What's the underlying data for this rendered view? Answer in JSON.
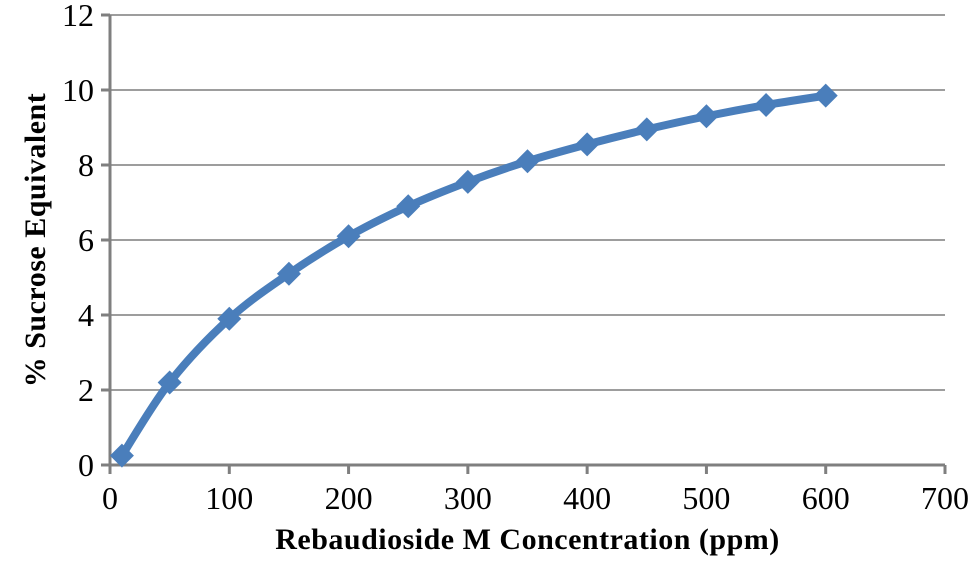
{
  "chart_data": {
    "type": "line",
    "title": "",
    "xlabel": "Rebaudioside M Concentration (ppm)",
    "ylabel": "% Sucrose Equivalent",
    "x": [
      10,
      50,
      100,
      150,
      200,
      250,
      300,
      350,
      400,
      450,
      500,
      550,
      600
    ],
    "y": [
      0.25,
      2.2,
      3.9,
      5.1,
      6.1,
      6.9,
      7.55,
      8.1,
      8.55,
      8.95,
      9.3,
      9.6,
      9.85
    ],
    "xlim": [
      0,
      700
    ],
    "ylim": [
      0,
      12
    ],
    "x_ticks": [
      0,
      100,
      200,
      300,
      400,
      500,
      600,
      700
    ],
    "y_ticks": [
      0,
      2,
      4,
      6,
      8,
      10,
      12
    ],
    "grid": "horizontal",
    "legend_position": "none",
    "marker": "diamond",
    "line_smooth": true,
    "colors": {
      "series": "#4a7ebb",
      "gridline": "#9d9d9d",
      "axis": "#7f7f7f",
      "text": "#000000",
      "background": "#ffffff"
    }
  }
}
